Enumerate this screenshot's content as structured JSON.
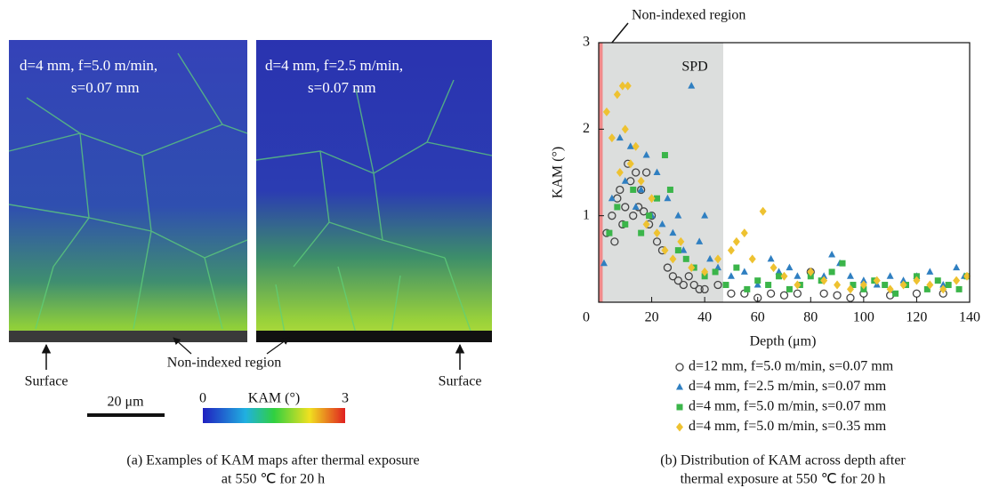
{
  "figure_a": {
    "panels": [
      {
        "lines": [
          "d=4 mm, f=5.0 m/min,",
          "s=0.07 mm"
        ]
      },
      {
        "lines": [
          "d=4 mm, f=2.5 m/min,",
          "s=0.07 mm"
        ]
      }
    ],
    "surface_labels": [
      "Surface",
      "Surface"
    ],
    "non_indexed_label": "Non-indexed region",
    "scale_bar": "20 μm",
    "colorbar": {
      "label": "KAM (°)",
      "ticks": [
        0,
        3
      ]
    },
    "caption": [
      "(a) Examples of KAM maps after thermal exposure",
      "at 550 ℃ for 20 h"
    ]
  },
  "chart_data": {
    "type": "scatter",
    "xlabel": "Depth (μm)",
    "ylabel": "KAM (°)",
    "xlim": [
      0,
      140
    ],
    "ylim": [
      0,
      3
    ],
    "xticks": [
      0,
      20,
      40,
      60,
      80,
      100,
      120,
      140
    ],
    "yticks": [
      1,
      2,
      3
    ],
    "shaded_regions": [
      {
        "label": "SPD",
        "x": [
          0,
          47
        ],
        "color": "#dcdedd"
      },
      {
        "x": [
          0,
          1.5
        ],
        "color": "#f08a8a"
      }
    ],
    "annotations": [
      "Non-indexed region"
    ],
    "series": [
      {
        "name": "d=12 mm, f=5.0 m/min, s=0.07 mm",
        "color": "#444444",
        "marker": "o",
        "x": [
          3,
          5,
          6,
          7,
          8,
          9,
          10,
          11,
          12,
          13,
          14,
          15,
          16,
          17,
          18,
          19,
          20,
          22,
          24,
          26,
          28,
          30,
          32,
          34,
          36,
          38,
          40,
          45,
          50,
          55,
          60,
          65,
          70,
          75,
          80,
          85,
          90,
          95,
          100,
          110,
          120,
          130
        ],
        "values": [
          0.8,
          1.0,
          0.7,
          1.2,
          1.3,
          0.9,
          1.1,
          1.6,
          1.4,
          1.0,
          1.5,
          1.1,
          1.3,
          1.05,
          1.5,
          0.9,
          1.0,
          0.7,
          0.6,
          0.4,
          0.3,
          0.25,
          0.2,
          0.3,
          0.2,
          0.15,
          0.15,
          0.2,
          0.1,
          0.1,
          0.05,
          0.1,
          0.08,
          0.1,
          0.35,
          0.1,
          0.08,
          0.05,
          0.1,
          0.08,
          0.1,
          0.1
        ]
      },
      {
        "name": "d=4 mm, f=2.5 m/min, s=0.07 mm",
        "color": "#2f7fc1",
        "marker": "^",
        "x": [
          2,
          5,
          8,
          10,
          12,
          14,
          16,
          18,
          20,
          22,
          24,
          26,
          28,
          30,
          32,
          35,
          38,
          40,
          42,
          45,
          50,
          55,
          60,
          65,
          68,
          72,
          75,
          80,
          85,
          88,
          91,
          95,
          100,
          105,
          110,
          115,
          120,
          125,
          130,
          135,
          138
        ],
        "values": [
          0.45,
          1.2,
          1.9,
          1.4,
          1.8,
          1.1,
          1.3,
          1.7,
          1.0,
          1.5,
          0.9,
          1.2,
          0.8,
          1.0,
          0.6,
          2.5,
          0.7,
          1.0,
          0.5,
          0.4,
          0.3,
          0.35,
          0.2,
          0.5,
          0.35,
          0.4,
          0.3,
          0.35,
          0.3,
          0.55,
          0.45,
          0.3,
          0.25,
          0.2,
          0.3,
          0.25,
          0.3,
          0.35,
          0.2,
          0.4,
          0.3
        ]
      },
      {
        "name": "d=4 mm, f=5.0 m/min, s=0.07 mm",
        "color": "#3bb54a",
        "marker": "s",
        "x": [
          4,
          7,
          10,
          13,
          16,
          19,
          22,
          25,
          27,
          30,
          33,
          36,
          40,
          44,
          48,
          52,
          56,
          60,
          64,
          68,
          72,
          76,
          80,
          84,
          88,
          92,
          96,
          100,
          104,
          108,
          112,
          116,
          120,
          124,
          128,
          132,
          136,
          139
        ],
        "values": [
          0.8,
          1.1,
          0.9,
          1.3,
          0.8,
          1.0,
          1.2,
          1.7,
          1.3,
          0.6,
          0.5,
          0.4,
          0.3,
          0.35,
          0.2,
          0.4,
          0.15,
          0.25,
          0.2,
          0.3,
          0.15,
          0.2,
          0.3,
          0.25,
          0.35,
          0.45,
          0.2,
          0.15,
          0.25,
          0.2,
          0.1,
          0.2,
          0.3,
          0.15,
          0.25,
          0.2,
          0.15,
          0.3
        ]
      },
      {
        "name": "d=4 mm, f=5.0 m/min, s=0.35 mm",
        "color": "#eec231",
        "marker": "D",
        "x": [
          3,
          5,
          7,
          8,
          9,
          10,
          11,
          12,
          14,
          16,
          18,
          20,
          22,
          25,
          28,
          31,
          35,
          40,
          45,
          50,
          52,
          55,
          58,
          62,
          66,
          70,
          75,
          80,
          85,
          90,
          95,
          100,
          105,
          110,
          115,
          120,
          125,
          130,
          135,
          139
        ],
        "values": [
          2.2,
          1.9,
          2.4,
          1.5,
          2.5,
          2.0,
          2.5,
          1.6,
          1.8,
          1.4,
          0.9,
          1.2,
          0.8,
          0.6,
          0.5,
          0.7,
          0.4,
          0.35,
          0.5,
          0.6,
          0.7,
          0.8,
          0.5,
          1.05,
          0.4,
          0.3,
          0.2,
          0.35,
          0.25,
          0.2,
          0.15,
          0.2,
          0.25,
          0.15,
          0.2,
          0.25,
          0.2,
          0.15,
          0.25,
          0.3
        ]
      }
    ],
    "caption": [
      "(b) Distribution of KAM across depth after",
      "thermal exposure at 550 ℃ for 20 h"
    ]
  }
}
